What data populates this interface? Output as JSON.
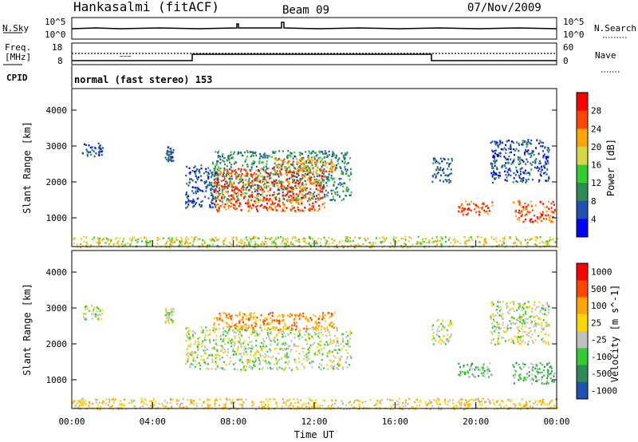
{
  "header": {
    "station": "Hankasalmi (fitACF)",
    "beam": "Beam 09",
    "date": "07/Nov/2009"
  },
  "noise_panel": {
    "left_label": "N.Sky",
    "left_ticks": [
      "10^5",
      "10^0"
    ],
    "right_label": "N.Search",
    "right_ticks": [
      "10^5",
      "10^0"
    ]
  },
  "freq_panel": {
    "left_label_line1": "Freq.",
    "left_label_line2": "[MHz]",
    "left_ticks": [
      "18",
      "8"
    ],
    "right_label": "Nave",
    "right_ticks": [
      "60",
      "0"
    ]
  },
  "cpid": {
    "label": "CPID",
    "text": "normal (fast stereo) 153"
  },
  "colors": {
    "power_scale": [
      "#0000ff",
      "#1f50b4",
      "#2e8b57",
      "#32cd32",
      "#d6d64a",
      "#ffa500",
      "#ff4500",
      "#ff0000"
    ],
    "velocity_scale": [
      "#ff0000",
      "#ff4500",
      "#ffa500",
      "#ffd700",
      "#c0c0c0",
      "#32cd32",
      "#2e8b57",
      "#1f50b4"
    ],
    "ground_scatter": "#c0c0c0"
  },
  "chart_data": [
    {
      "type": "heatmap",
      "name": "power",
      "ylabel": "Slant Range [km]",
      "yticks": [
        "1000",
        "2000",
        "3000",
        "4000"
      ],
      "ylim": [
        200,
        4600
      ],
      "xlim_hours": [
        0,
        24
      ],
      "colorbar_label": "Power [dB]",
      "colorbar_ticks": [
        "4",
        "8",
        "12",
        "16",
        "20",
        "24",
        "28"
      ],
      "regions": [
        {
          "t": [
            0.5,
            1.5
          ],
          "range": [
            2700,
            3100
          ],
          "level": 1
        },
        {
          "t": [
            4.6,
            5.0
          ],
          "range": [
            2600,
            3000
          ],
          "level": 1
        },
        {
          "t": [
            5.6,
            7.2
          ],
          "range": [
            1300,
            2500
          ],
          "level": 1
        },
        {
          "t": [
            6.9,
            13.8
          ],
          "range": [
            1500,
            2900
          ],
          "level": 2
        },
        {
          "t": [
            7.0,
            12.5
          ],
          "range": [
            1200,
            2400
          ],
          "level": 6
        },
        {
          "t": [
            10.0,
            13.0
          ],
          "range": [
            2300,
            2700
          ],
          "level": 5
        },
        {
          "t": [
            17.8,
            18.8
          ],
          "range": [
            2000,
            2700
          ],
          "level": 1
        },
        {
          "t": [
            19.1,
            20.8
          ],
          "range": [
            1100,
            1500
          ],
          "level": 6
        },
        {
          "t": [
            20.7,
            23.6
          ],
          "range": [
            2000,
            3200
          ],
          "level": 1
        },
        {
          "t": [
            21.8,
            23.9
          ],
          "range": [
            900,
            1500
          ],
          "level": 6
        },
        {
          "t": [
            0,
            24
          ],
          "range": [
            200,
            500
          ],
          "level": 4
        }
      ]
    },
    {
      "type": "heatmap",
      "name": "velocity",
      "ylabel": "Slant Range [km]",
      "yticks": [
        "1000",
        "2000",
        "3000",
        "4000"
      ],
      "ylim": [
        200,
        4600
      ],
      "xlim_hours": [
        0,
        24
      ],
      "xticks": [
        "00:00",
        "04:00",
        "08:00",
        "12:00",
        "16:00",
        "20:00",
        "00:00"
      ],
      "xlabel": "Time UT",
      "colorbar_label": "Velocity [m s^-1]",
      "colorbar_ticks": [
        "1000",
        "500",
        "100",
        "25",
        "-25",
        "-100",
        "-500",
        "-1000"
      ],
      "regions": [
        {
          "t": [
            0.5,
            1.5
          ],
          "range": [
            2700,
            3100
          ],
          "level": 4
        },
        {
          "t": [
            4.6,
            5.0
          ],
          "range": [
            2600,
            3000
          ],
          "level": 4
        },
        {
          "t": [
            5.6,
            13.8
          ],
          "range": [
            1300,
            2500
          ],
          "level": 4
        },
        {
          "t": [
            7.0,
            13.0
          ],
          "range": [
            2400,
            2900
          ],
          "level": 2
        },
        {
          "t": [
            17.8,
            18.8
          ],
          "range": [
            2000,
            2700
          ],
          "level": 4
        },
        {
          "t": [
            19.1,
            20.8
          ],
          "range": [
            1100,
            1500
          ],
          "level": 5
        },
        {
          "t": [
            20.7,
            23.6
          ],
          "range": [
            2000,
            3200
          ],
          "level": 4
        },
        {
          "t": [
            21.8,
            23.9
          ],
          "range": [
            900,
            1500
          ],
          "level": 5
        },
        {
          "t": [
            0,
            24
          ],
          "range": [
            200,
            500
          ],
          "level": 3
        }
      ]
    }
  ]
}
